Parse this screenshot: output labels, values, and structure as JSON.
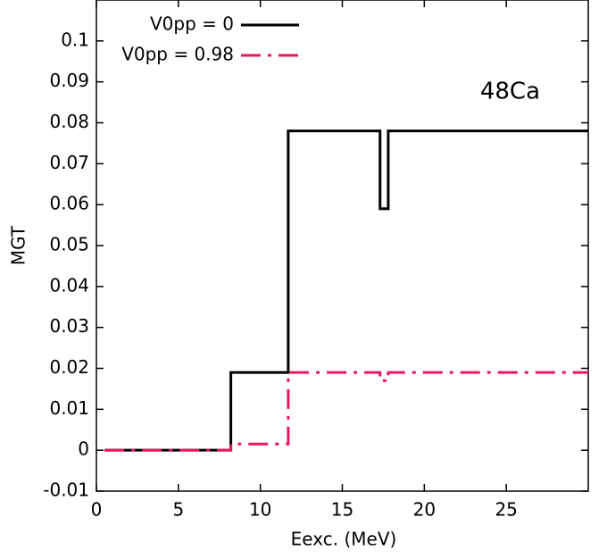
{
  "chart_data": {
    "type": "line",
    "x_label": "Eexc. (MeV)",
    "y_label": "MGT",
    "annotation": "48Ca",
    "x": [
      0.5,
      8.2,
      8.2,
      11.7,
      11.7,
      17.3,
      17.3,
      17.8,
      17.8,
      30
    ],
    "series": [
      {
        "name": "V0pp = 0",
        "color": "#000000",
        "dash": "none",
        "values": [
          0,
          0,
          0.019,
          0.019,
          0.078,
          0.078,
          0.059,
          0.059,
          0.078,
          0.078
        ]
      },
      {
        "name": "V0pp = 0.98",
        "color": "#e8175d",
        "dash": "dashdot",
        "values": [
          0,
          0,
          0.0015,
          0.0015,
          0.019,
          0.019,
          0.017,
          0.017,
          0.019,
          0.019
        ]
      }
    ],
    "xlim": [
      0,
      30
    ],
    "xticks": [
      0,
      5,
      10,
      15,
      20,
      25
    ],
    "ylim": [
      -0.01,
      0.11
    ],
    "yticks": [
      -0.01,
      0,
      0.01,
      0.02,
      0.03,
      0.04,
      0.05,
      0.06,
      0.07,
      0.08,
      0.09,
      0.1
    ],
    "legend": "top-left",
    "grid": false
  }
}
